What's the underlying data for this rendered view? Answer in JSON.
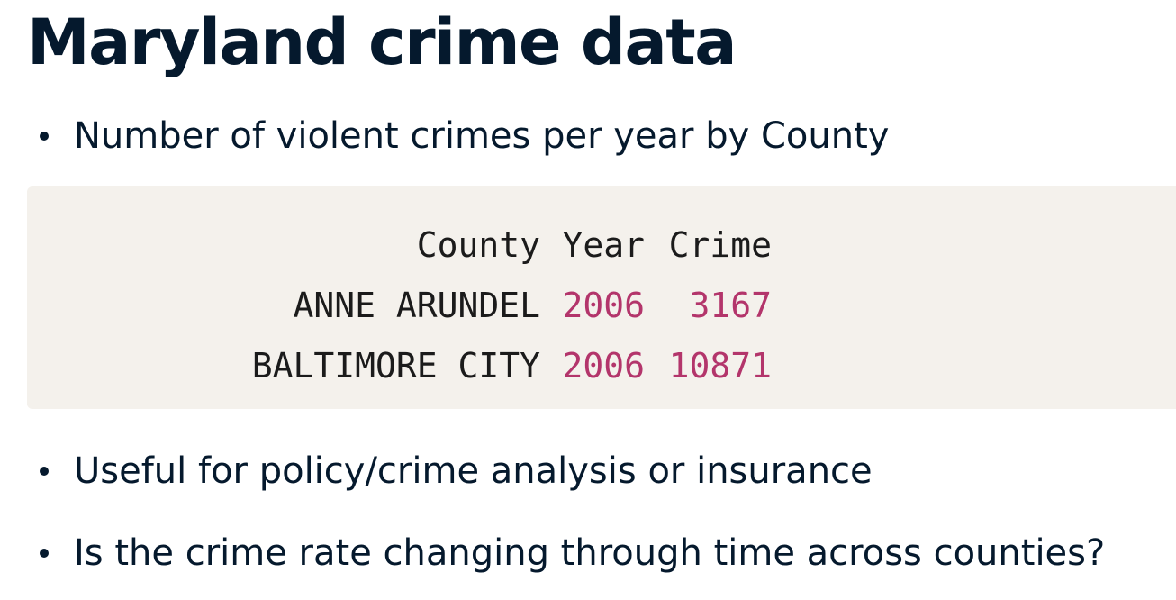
{
  "slide": {
    "title": "Maryland crime data",
    "bullets": [
      "Number of violent crimes per year by County",
      "Useful for policy/crime analysis or insurance",
      "Is the crime rate changing through time across counties?"
    ]
  },
  "table": {
    "columns": [
      "County",
      "Year",
      "Crime"
    ],
    "rows": [
      {
        "county": "ANNE ARUNDEL",
        "year": "2006",
        "crime": "3167"
      },
      {
        "county": "BALTIMORE CITY",
        "year": "2006",
        "crime": "10871"
      }
    ]
  },
  "colors": {
    "text": "#05192d",
    "code_background": "#f4f1ec",
    "number": "#b3356b"
  }
}
